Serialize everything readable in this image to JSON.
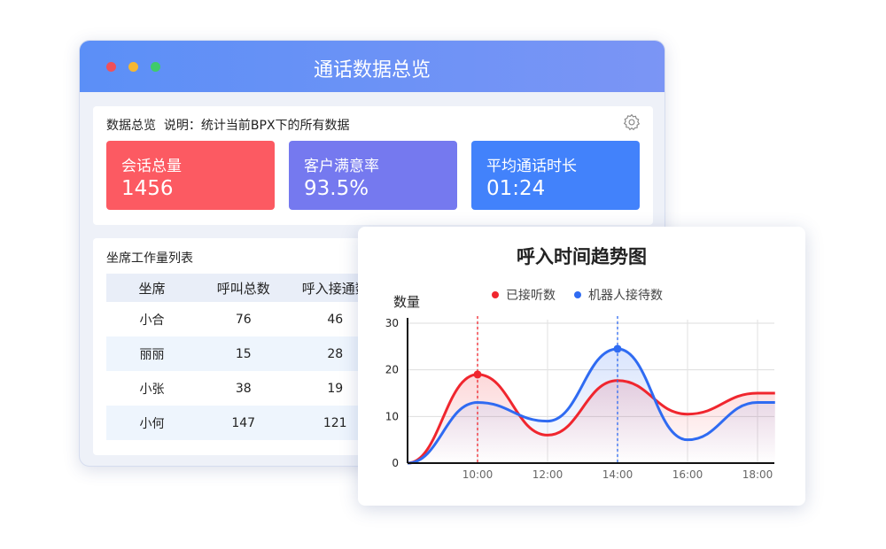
{
  "window": {
    "title": "通话数据总览",
    "dots": [
      "#f0505a",
      "#f5b731",
      "#3fcb6a"
    ]
  },
  "overview": {
    "heading": "数据总览",
    "note": "说明：统计当前BPX下的所有数据",
    "stats": [
      {
        "label": "会话总量",
        "value": "1456",
        "color": "#fc5a62"
      },
      {
        "label": "客户满意率",
        "value": "93.5%",
        "color": "#7579ef"
      },
      {
        "label": "平均通话时长",
        "value": "01:24",
        "color": "#4282fb"
      }
    ]
  },
  "workload": {
    "title": "坐席工作量列表",
    "columns": [
      "坐席",
      "呼叫总数",
      "呼入接通数"
    ],
    "rows": [
      [
        "小合",
        "76",
        "46"
      ],
      [
        "丽丽",
        "15",
        "28"
      ],
      [
        "小张",
        "38",
        "19"
      ],
      [
        "小何",
        "147",
        "121"
      ]
    ]
  },
  "chart_data": {
    "type": "line",
    "title": "呼入时间趋势图",
    "ylabel": "数量",
    "ylim": [
      0,
      30
    ],
    "yticks": [
      0,
      10,
      20,
      30
    ],
    "xticks": [
      "10:00",
      "12:00",
      "14:00",
      "16:00",
      "18:00"
    ],
    "x_hours": [
      8,
      10,
      12,
      14,
      16,
      18,
      18.5
    ],
    "series": [
      {
        "name": "已接听数",
        "color": "#f0262e",
        "values": [
          0,
          19,
          6,
          17.7,
          10.5,
          15,
          15
        ],
        "highlight": "10:00"
      },
      {
        "name": "机器人接待数",
        "color": "#2f6bf2",
        "values": [
          0,
          13,
          9,
          24.5,
          5,
          13,
          13
        ],
        "highlight": "14:00"
      }
    ],
    "grid": true,
    "legend": "top"
  }
}
